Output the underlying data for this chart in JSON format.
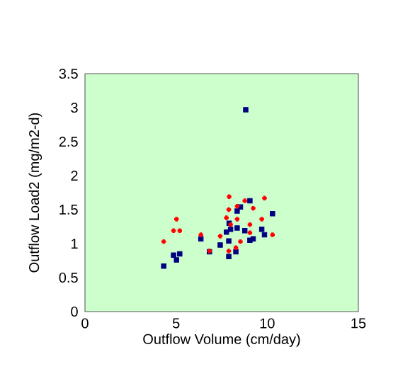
{
  "chart_data": {
    "type": "scatter",
    "xlabel": "Outflow Volume (cm/day)",
    "ylabel": "Outflow Load2 (mg/m2-d)",
    "xlim": [
      0,
      15
    ],
    "ylim": [
      0,
      3.5
    ],
    "xticks": [
      0,
      5,
      10,
      15
    ],
    "yticks": [
      0,
      0.5,
      1,
      1.5,
      2,
      2.5,
      3,
      3.5
    ],
    "series": [
      {
        "color": "#000080",
        "marker": "square",
        "x": [
          4.32,
          4.86,
          5.02,
          5.2,
          6.36,
          6.83,
          7.42,
          7.76,
          7.91,
          7.99,
          7.89,
          7.89,
          8.28,
          8.35,
          8.53,
          8.35,
          8.77,
          8.82,
          9.05,
          9.05,
          9.23,
          9.7,
          9.85,
          10.29
        ],
        "values": [
          0.67,
          0.83,
          0.76,
          0.85,
          1.07,
          0.88,
          0.98,
          1.17,
          1.3,
          1.21,
          1.04,
          0.81,
          0.88,
          1.48,
          1.54,
          1.23,
          1.19,
          2.97,
          1.63,
          1.05,
          1.07,
          1.21,
          1.13,
          1.44
        ]
      },
      {
        "color": "#ff0000",
        "marker": "cross",
        "x": [
          4.32,
          4.86,
          5.02,
          5.2,
          6.36,
          6.83,
          7.42,
          7.76,
          7.91,
          7.89,
          7.99,
          7.89,
          8.28,
          8.35,
          8.35,
          8.53,
          8.77,
          9.05,
          9.05,
          9.23,
          9.7,
          9.85,
          10.29
        ],
        "values": [
          1.03,
          1.19,
          1.36,
          1.19,
          1.13,
          0.89,
          1.11,
          1.38,
          1.69,
          1.5,
          1.28,
          0.89,
          0.94,
          1.55,
          1.36,
          1.03,
          1.63,
          1.28,
          1.16,
          1.52,
          1.36,
          1.67,
          1.13
        ]
      }
    ]
  }
}
